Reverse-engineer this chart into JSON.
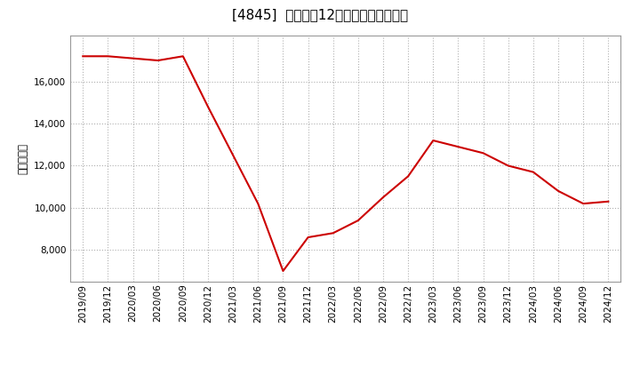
{
  "title": "[4845]  売上高の12か月移動合計の推移",
  "ylabel": "（百万円）",
  "line_color": "#cc0000",
  "background_color": "#ffffff",
  "plot_bg_color": "#ffffff",
  "grid_color": "#b0b0b0",
  "dates": [
    "2019/09",
    "2019/12",
    "2020/03",
    "2020/06",
    "2020/09",
    "2020/12",
    "2021/03",
    "2021/06",
    "2021/09",
    "2021/12",
    "2022/03",
    "2022/06",
    "2022/09",
    "2022/12",
    "2023/03",
    "2023/06",
    "2023/09",
    "2023/12",
    "2024/03",
    "2024/06",
    "2024/09",
    "2024/12"
  ],
  "values": [
    17200,
    17200,
    17100,
    17000,
    17200,
    14800,
    12500,
    10200,
    7000,
    8600,
    8800,
    9400,
    10500,
    11500,
    13200,
    12900,
    12600,
    12000,
    11700,
    10800,
    10200,
    10300
  ],
  "yticks": [
    8000,
    10000,
    12000,
    14000,
    16000
  ],
  "ylim": [
    6500,
    18200
  ],
  "title_fontsize": 11,
  "tick_fontsize": 7.5,
  "ylabel_fontsize": 8.5
}
